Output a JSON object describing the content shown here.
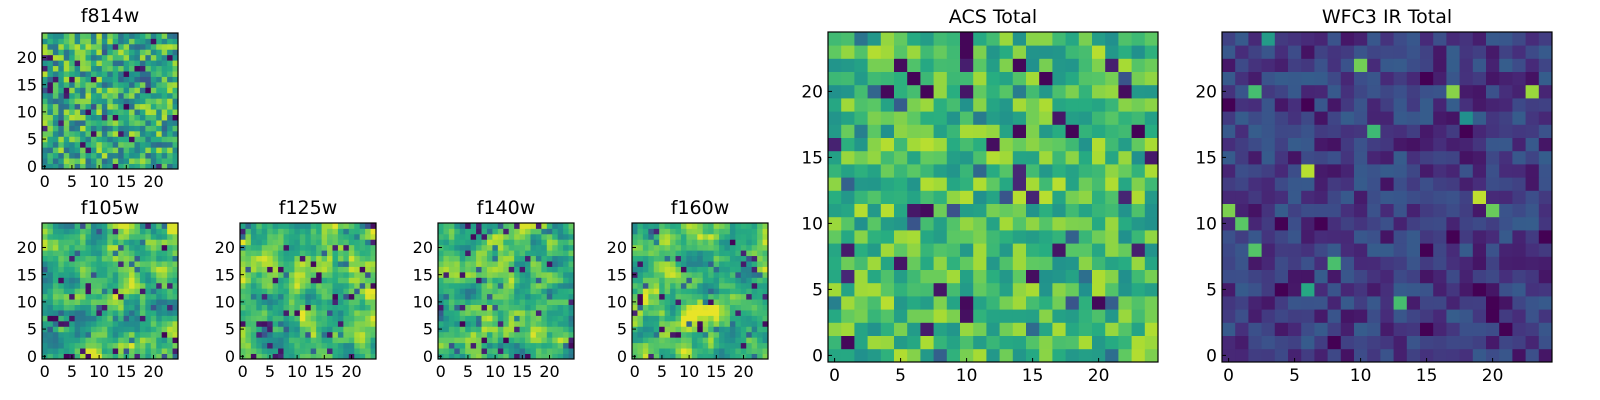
{
  "chart_data": [
    {
      "id": "f814w",
      "type": "heatmap",
      "title": "f814w",
      "colormap": "viridis",
      "grid_size": 25,
      "pattern": "noise",
      "seed": 11,
      "xlim": [
        0,
        24
      ],
      "ylim": [
        0,
        24
      ],
      "xticks": [
        0,
        5,
        10,
        15,
        20
      ],
      "yticks": [
        0,
        5,
        10,
        15,
        20
      ],
      "value_range": [
        0,
        1
      ],
      "typical_range": [
        0.35,
        0.9
      ]
    },
    {
      "id": "f105w",
      "type": "heatmap",
      "title": "f105w",
      "colormap": "viridis",
      "grid_size": 25,
      "pattern": "smooth",
      "seed": 22,
      "xlim": [
        0,
        24
      ],
      "ylim": [
        0,
        24
      ],
      "xticks": [
        0,
        5,
        10,
        15,
        20
      ],
      "yticks": [
        0,
        5,
        10,
        15,
        20
      ],
      "value_range": [
        0,
        1
      ],
      "typical_range": [
        0.4,
        0.95
      ]
    },
    {
      "id": "f125w",
      "type": "heatmap",
      "title": "f125w",
      "colormap": "viridis",
      "grid_size": 25,
      "pattern": "smooth",
      "seed": 33,
      "xlim": [
        0,
        24
      ],
      "ylim": [
        0,
        24
      ],
      "xticks": [
        0,
        5,
        10,
        15,
        20
      ],
      "yticks": [
        0,
        5,
        10,
        15,
        20
      ],
      "value_range": [
        0,
        1
      ],
      "typical_range": [
        0.45,
        0.97
      ]
    },
    {
      "id": "f140w",
      "type": "heatmap",
      "title": "f140w",
      "colormap": "viridis",
      "grid_size": 25,
      "pattern": "smooth",
      "seed": 44,
      "xlim": [
        0,
        24
      ],
      "ylim": [
        0,
        24
      ],
      "xticks": [
        0,
        5,
        10,
        15,
        20
      ],
      "yticks": [
        0,
        5,
        10,
        15,
        20
      ],
      "value_range": [
        0,
        1
      ],
      "typical_range": [
        0.4,
        0.95
      ]
    },
    {
      "id": "f160w",
      "type": "heatmap",
      "title": "f160w",
      "colormap": "viridis",
      "grid_size": 25,
      "pattern": "smooth",
      "seed": 55,
      "xlim": [
        0,
        24
      ],
      "ylim": [
        0,
        24
      ],
      "xticks": [
        0,
        5,
        10,
        15,
        20
      ],
      "yticks": [
        0,
        5,
        10,
        15,
        20
      ],
      "value_range": [
        0,
        1
      ],
      "typical_range": [
        0.45,
        0.97
      ]
    },
    {
      "id": "acs_total",
      "type": "heatmap",
      "title": "ACS Total",
      "colormap": "viridis",
      "grid_size": 25,
      "pattern": "noise",
      "seed": 66,
      "xlim": [
        0,
        24
      ],
      "ylim": [
        0,
        24
      ],
      "xticks": [
        0,
        5,
        10,
        15,
        20
      ],
      "yticks": [
        0,
        5,
        10,
        15,
        20
      ],
      "value_range": [
        0,
        1
      ],
      "typical_range": [
        0.5,
        0.9
      ]
    },
    {
      "id": "wfc3_ir_total",
      "type": "heatmap",
      "title": "WFC3 IR Total",
      "colormap": "viridis",
      "grid_size": 25,
      "pattern": "dark",
      "seed": 77,
      "xlim": [
        0,
        24
      ],
      "ylim": [
        0,
        24
      ],
      "xticks": [
        0,
        5,
        10,
        15,
        20
      ],
      "yticks": [
        0,
        5,
        10,
        15,
        20
      ],
      "value_range": [
        0,
        1
      ],
      "typical_range": [
        0.05,
        0.3
      ]
    }
  ]
}
